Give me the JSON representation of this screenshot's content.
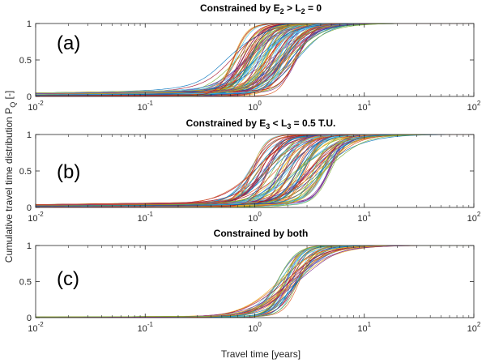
{
  "figure": {
    "xlabel": "Travel time [years]",
    "ylabel_main": "Cumulative travel time distribution P",
    "ylabel_sub": "Q",
    "ylabel_unit": " [-]"
  },
  "chart_data": [
    {
      "type": "line",
      "panel_label": "(a)",
      "title": {
        "pre": "Constrained by E",
        "s1": "2",
        "mid": " > L",
        "s2": "2",
        "post": " = 0"
      },
      "xscale": "log",
      "xlim": [
        0.01,
        100
      ],
      "ylim": [
        0,
        1
      ],
      "x_ticks": [
        {
          "base": "10",
          "exp": "-2",
          "value": 0.01
        },
        {
          "base": "10",
          "exp": "-1",
          "value": 0.1
        },
        {
          "base": "10",
          "exp": "0",
          "value": 1
        },
        {
          "base": "10",
          "exp": "1",
          "value": 10
        },
        {
          "base": "10",
          "exp": "2",
          "value": 100
        }
      ],
      "y_ticks": [
        {
          "label": "0",
          "value": 0
        },
        {
          "label": "0.5",
          "value": 0.5
        },
        {
          "label": "1",
          "value": 1
        }
      ],
      "grid": false,
      "n_series_approx": 100,
      "median_curve": [
        [
          0.01,
          0.03
        ],
        [
          0.1,
          0.06
        ],
        [
          0.3,
          0.15
        ],
        [
          0.5,
          0.3
        ],
        [
          1,
          0.45
        ],
        [
          1.5,
          0.65
        ],
        [
          2,
          0.85
        ],
        [
          3,
          0.93
        ],
        [
          5,
          0.97
        ],
        [
          10,
          0.99
        ],
        [
          100,
          1.0
        ]
      ],
      "envelope": {
        "median_x_at_half_min": 0.6,
        "median_x_at_half_max": 2.5,
        "low_tail_max": 0.1
      }
    },
    {
      "type": "line",
      "panel_label": "(b)",
      "title": {
        "pre": "Constrained by E",
        "s1": "3",
        "mid": " < L",
        "s2": "3",
        "post": " = 0.5 T.U."
      },
      "xscale": "log",
      "xlim": [
        0.01,
        100
      ],
      "ylim": [
        0,
        1
      ],
      "x_ticks": [
        {
          "base": "10",
          "exp": "-2",
          "value": 0.01
        },
        {
          "base": "10",
          "exp": "-1",
          "value": 0.1
        },
        {
          "base": "10",
          "exp": "0",
          "value": 1
        },
        {
          "base": "10",
          "exp": "1",
          "value": 10
        },
        {
          "base": "10",
          "exp": "2",
          "value": 100
        }
      ],
      "y_ticks": [
        {
          "label": "0",
          "value": 0
        },
        {
          "label": "0.5",
          "value": 0.5
        },
        {
          "label": "1",
          "value": 1
        }
      ],
      "grid": false,
      "n_series_approx": 100,
      "median_curve": [
        [
          0.01,
          0.04
        ],
        [
          0.1,
          0.06
        ],
        [
          0.5,
          0.1
        ],
        [
          1,
          0.3
        ],
        [
          1.5,
          0.5
        ],
        [
          2,
          0.65
        ],
        [
          3,
          0.85
        ],
        [
          5,
          0.95
        ],
        [
          10,
          0.99
        ],
        [
          100,
          1.0
        ]
      ],
      "envelope": {
        "median_x_at_half_min": 0.9,
        "median_x_at_half_max": 5.0,
        "low_tail_max": 0.08
      }
    },
    {
      "type": "line",
      "panel_label": "(c)",
      "title": {
        "pre": "Constrained by both",
        "s1": "",
        "mid": "",
        "s2": "",
        "post": ""
      },
      "xscale": "log",
      "xlim": [
        0.01,
        100
      ],
      "ylim": [
        0,
        1
      ],
      "x_ticks": [
        {
          "base": "10",
          "exp": "-2",
          "value": 0.01
        },
        {
          "base": "10",
          "exp": "-1",
          "value": 0.1
        },
        {
          "base": "10",
          "exp": "0",
          "value": 1
        },
        {
          "base": "10",
          "exp": "1",
          "value": 10
        },
        {
          "base": "10",
          "exp": "2",
          "value": 100
        }
      ],
      "y_ticks": [
        {
          "label": "0",
          "value": 0
        },
        {
          "label": "0.5",
          "value": 0.5
        },
        {
          "label": "1",
          "value": 1
        }
      ],
      "grid": false,
      "n_series_approx": 40,
      "median_curve": [
        [
          0.01,
          0.0
        ],
        [
          0.5,
          0.01
        ],
        [
          1,
          0.03
        ],
        [
          1.5,
          0.3
        ],
        [
          2,
          0.6
        ],
        [
          3,
          0.85
        ],
        [
          5,
          0.95
        ],
        [
          10,
          0.99
        ],
        [
          100,
          1.0
        ]
      ],
      "envelope": {
        "median_x_at_half_min": 1.6,
        "median_x_at_half_max": 2.6,
        "low_tail_max": 0.02
      }
    }
  ],
  "colors": {
    "series_palette": [
      "#0072bd",
      "#d95319",
      "#edb120",
      "#7e2f8e",
      "#77ac30",
      "#4dbeee",
      "#a2142f"
    ],
    "axis": "#262626"
  }
}
